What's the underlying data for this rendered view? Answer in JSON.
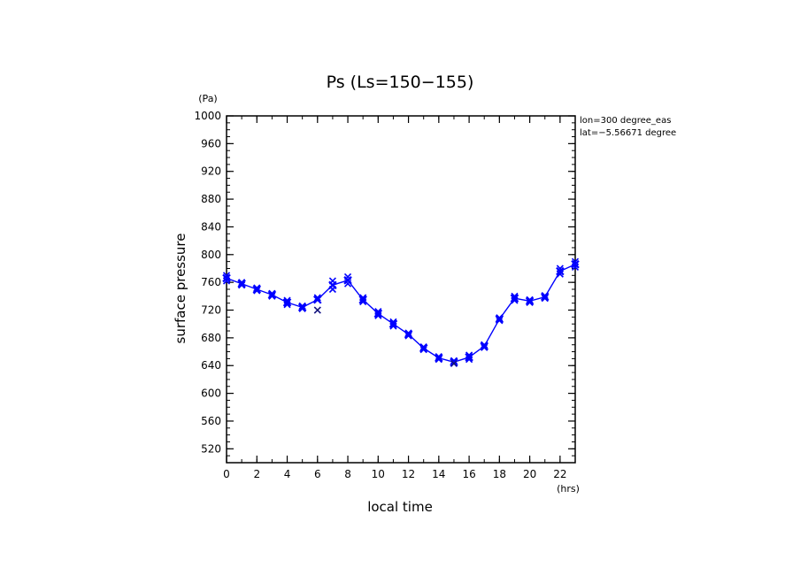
{
  "chart_data": {
    "type": "line",
    "title": "Ps (Ls=150−155)",
    "xlabel": "local time",
    "ylabel": "surface pressure",
    "x_unit": "(hrs)",
    "y_unit": "(Pa)",
    "xlim": [
      0,
      23
    ],
    "ylim": [
      500,
      1000
    ],
    "x_ticks": [
      0,
      2,
      4,
      6,
      8,
      10,
      12,
      14,
      16,
      18,
      20,
      22
    ],
    "y_ticks": [
      520,
      560,
      600,
      640,
      680,
      720,
      760,
      800,
      840,
      880,
      920,
      960,
      1000
    ],
    "grid": false,
    "annotations": [
      "lon=300 degree_eas",
      "lat=−5.56671 degree"
    ],
    "color": "#0000ff",
    "x": [
      0,
      1,
      2,
      3,
      4,
      5,
      6,
      7,
      8,
      9,
      10,
      11,
      12,
      13,
      14,
      15,
      16,
      17,
      18,
      19,
      20,
      21,
      22,
      23
    ],
    "series": [
      {
        "values": [
          766,
          758,
          750,
          742,
          731,
          724,
          735,
          756,
          763,
          735,
          715,
          700,
          685,
          665,
          651,
          645,
          652,
          668,
          707,
          737,
          733,
          739,
          776,
          786
        ]
      }
    ],
    "markers": [
      {
        "values": [
          770,
          760,
          752,
          744,
          734,
          726,
          738,
          762,
          768,
          738,
          718,
          703,
          687,
          667,
          653,
          647,
          655,
          670,
          709,
          740,
          735,
          741,
          780,
          790
        ]
      },
      {
        "values": [
          762,
          756,
          748,
          740,
          728,
          722,
          720,
          750,
          758,
          732,
          712,
          697,
          683,
          663,
          649,
          643,
          649,
          666,
          705,
          734,
          731,
          737,
          772,
          782
        ]
      }
    ]
  }
}
